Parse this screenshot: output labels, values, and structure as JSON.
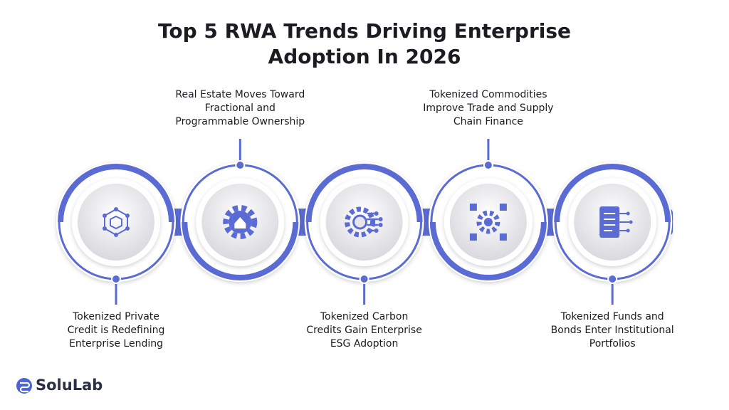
{
  "header": {
    "title": [
      "Top 5 RWA Trends Driving Enterprise",
      "Adoption In 2026"
    ]
  },
  "items": [
    {
      "label": [
        "Tokenized Private",
        "Credit is Redefining",
        "Enterprise Lending"
      ]
    },
    {
      "label": [
        "Real Estate Moves Toward",
        "Fractional and",
        "Programmable Ownership"
      ]
    },
    {
      "label": [
        "Tokenized Carbon",
        "Credits Gain Enterprise",
        "ESG Adoption"
      ]
    },
    {
      "label": [
        "Tokenized Commodities",
        "Improve Trade and Supply",
        "Chain Finance"
      ]
    },
    {
      "label": [
        "Tokenized Funds and",
        "Bonds Enter Institutional",
        "Portfolios"
      ]
    }
  ],
  "footer": {
    "logo": "SoluLab"
  }
}
